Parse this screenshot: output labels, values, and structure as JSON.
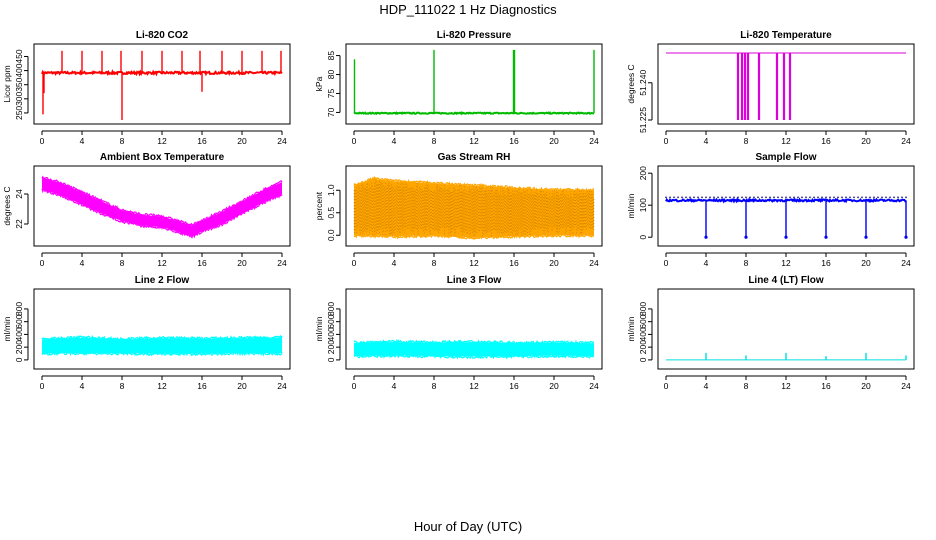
{
  "title": "HDP_111022  1 Hz Diagnostics",
  "x_axis_label": "Hour of Day (UTC)",
  "chart_data": [
    {
      "type": "line",
      "title": "Li-820 CO2",
      "ylabel": "Licor ppm",
      "color": "#ff0000",
      "x": [
        0,
        4,
        8,
        12,
        16,
        20,
        24
      ],
      "xlim": [
        0,
        24
      ],
      "yticks": [
        250,
        300,
        350,
        400,
        450
      ],
      "ylim": [
        225,
        480
      ],
      "baseline": 392,
      "band": 8,
      "spikes": [
        {
          "x": 0.1,
          "y": 245
        },
        {
          "x": 0.2,
          "y": 320
        },
        {
          "x": 2.0,
          "y": 470
        },
        {
          "x": 4.0,
          "y": 470
        },
        {
          "x": 6.0,
          "y": 470
        },
        {
          "x": 7.9,
          "y": 470
        },
        {
          "x": 8.0,
          "y": 225
        },
        {
          "x": 10.0,
          "y": 470
        },
        {
          "x": 12.0,
          "y": 470
        },
        {
          "x": 14.0,
          "y": 470
        },
        {
          "x": 15.8,
          "y": 470
        },
        {
          "x": 16.0,
          "y": 325
        },
        {
          "x": 18.0,
          "y": 470
        },
        {
          "x": 20.0,
          "y": 470
        },
        {
          "x": 22.0,
          "y": 470
        },
        {
          "x": 23.9,
          "y": 470
        }
      ]
    },
    {
      "type": "line",
      "title": "Li-820 Pressure",
      "ylabel": "kPa",
      "color": "#00bb00",
      "x": [
        0,
        4,
        8,
        12,
        16,
        20,
        24
      ],
      "xlim": [
        0,
        24
      ],
      "yticks": [
        70,
        75,
        80,
        85
      ],
      "ylim": [
        68,
        87
      ],
      "baseline": 69.8,
      "band": 0.3,
      "spikes": [
        {
          "x": 0.05,
          "y": 84
        },
        {
          "x": 8.0,
          "y": 86.5
        },
        {
          "x": 15.95,
          "y": 86.5
        },
        {
          "x": 16.05,
          "y": 86.5
        },
        {
          "x": 24.0,
          "y": 86.5
        }
      ]
    },
    {
      "type": "line",
      "title": "Li-820 Temperature",
      "ylabel": "degrees C",
      "color": "#dd00dd",
      "x": [
        0,
        4,
        8,
        12,
        16,
        20,
        24
      ],
      "xlim": [
        0,
        24
      ],
      "yticks": [
        51.225,
        51.24
      ],
      "ytick_labels": [
        "51.225",
        "51.240"
      ],
      "ylim": [
        51.225,
        51.254
      ],
      "baseline": 51.252,
      "band": 0,
      "drops": [
        7.2,
        7.6,
        7.9,
        8.2,
        9.3,
        11.1,
        11.8,
        12.4
      ]
    },
    {
      "type": "area",
      "title": "Ambient Box Temperature",
      "ylabel": "degrees C",
      "color": "#ff00ff",
      "x": [
        0,
        4,
        8,
        12,
        16,
        20,
        24
      ],
      "xlim": [
        0,
        24
      ],
      "yticks": [
        22,
        24
      ],
      "ylim": [
        20.8,
        25.6
      ],
      "series": [
        {
          "name": "upper",
          "points": [
            [
              0,
              25.1
            ],
            [
              2,
              24.7
            ],
            [
              4,
              24.1
            ],
            [
              6,
              23.5
            ],
            [
              8,
              22.9
            ],
            [
              10,
              22.6
            ],
            [
              12,
              22.5
            ],
            [
              14,
              22.1
            ],
            [
              15,
              21.9
            ],
            [
              16,
              22.2
            ],
            [
              18,
              22.8
            ],
            [
              20,
              23.5
            ],
            [
              22,
              24.2
            ],
            [
              24,
              24.8
            ]
          ]
        },
        {
          "name": "lower",
          "points": [
            [
              0,
              24.3
            ],
            [
              2,
              23.9
            ],
            [
              4,
              23.3
            ],
            [
              6,
              22.7
            ],
            [
              8,
              22.2
            ],
            [
              10,
              21.9
            ],
            [
              12,
              21.8
            ],
            [
              14,
              21.4
            ],
            [
              15,
              21.2
            ],
            [
              16,
              21.5
            ],
            [
              18,
              22.0
            ],
            [
              20,
              22.7
            ],
            [
              22,
              23.4
            ],
            [
              24,
              24.0
            ]
          ]
        }
      ]
    },
    {
      "type": "area",
      "title": "Gas Stream RH",
      "ylabel": "percent",
      "color": "#ffa500",
      "x": [
        0,
        4,
        8,
        12,
        16,
        20,
        24
      ],
      "xlim": [
        0,
        24
      ],
      "yticks": [
        0.0,
        0.5,
        1.0
      ],
      "ytick_labels": [
        "0.0",
        "0.5",
        "1.0"
      ],
      "ylim": [
        -0.15,
        1.45
      ],
      "series": [
        {
          "name": "upper",
          "points": [
            [
              0,
              1.1
            ],
            [
              2,
              1.25
            ],
            [
              4,
              1.2
            ],
            [
              8,
              1.15
            ],
            [
              12,
              1.1
            ],
            [
              16,
              1.05
            ],
            [
              20,
              1.0
            ],
            [
              24,
              1.0
            ]
          ]
        },
        {
          "name": "lower",
          "points": [
            [
              0,
              0.0
            ],
            [
              4,
              -0.02
            ],
            [
              8,
              0.0
            ],
            [
              12,
              -0.05
            ],
            [
              16,
              -0.02
            ],
            [
              20,
              0.0
            ],
            [
              24,
              0.0
            ]
          ]
        }
      ]
    },
    {
      "type": "line",
      "title": "Sample Flow",
      "ylabel": "ml/min",
      "color": "#0000ff",
      "x": [
        0,
        4,
        8,
        12,
        16,
        20,
        24
      ],
      "xlim": [
        0,
        24
      ],
      "yticks": [
        0,
        100,
        200
      ],
      "ylim": [
        -15,
        210
      ],
      "baseline": 115,
      "band": 6,
      "drops": [
        4.0,
        8.0,
        12.0,
        16.0,
        20.0,
        24.0
      ],
      "drop_to": 0
    },
    {
      "type": "area",
      "title": "Line 2 Flow",
      "ylabel": "ml/min",
      "color": "#00ffff",
      "x": [
        0,
        4,
        8,
        12,
        16,
        20,
        24
      ],
      "xlim": [
        0,
        24
      ],
      "yticks": [
        0,
        200,
        400,
        600,
        800
      ],
      "ylim": [
        -80,
        1050
      ],
      "series": [
        {
          "name": "upper",
          "points": [
            [
              0,
              320
            ],
            [
              4,
              350
            ],
            [
              8,
              320
            ],
            [
              12,
              340
            ],
            [
              16,
              330
            ],
            [
              20,
              340
            ],
            [
              24,
              350
            ]
          ]
        },
        {
          "name": "lower",
          "points": [
            [
              0,
              100
            ],
            [
              4,
              110
            ],
            [
              8,
              105
            ],
            [
              12,
              100
            ],
            [
              16,
              100
            ],
            [
              20,
              110
            ],
            [
              24,
              105
            ]
          ]
        }
      ]
    },
    {
      "type": "area",
      "title": "Line 3 Flow",
      "ylabel": "ml/min",
      "color": "#00ffff",
      "x": [
        0,
        4,
        8,
        12,
        16,
        20,
        24
      ],
      "xlim": [
        0,
        24
      ],
      "yticks": [
        0,
        200,
        400,
        600,
        800
      ],
      "ylim": [
        -80,
        1050
      ],
      "series": [
        {
          "name": "upper",
          "points": [
            [
              0,
              270
            ],
            [
              4,
              280
            ],
            [
              8,
              270
            ],
            [
              12,
              280
            ],
            [
              16,
              265
            ],
            [
              20,
              270
            ],
            [
              24,
              260
            ]
          ]
        },
        {
          "name": "lower",
          "points": [
            [
              0,
              60
            ],
            [
              4,
              70
            ],
            [
              8,
              60
            ],
            [
              12,
              55
            ],
            [
              16,
              60
            ],
            [
              20,
              65
            ],
            [
              24,
              60
            ]
          ]
        }
      ]
    },
    {
      "type": "line",
      "title": "Line 4 (LT) Flow",
      "ylabel": "ml/min",
      "color": "#00dddd",
      "x": [
        0,
        4,
        8,
        12,
        16,
        20,
        24
      ],
      "xlim": [
        0,
        24
      ],
      "yticks": [
        0,
        200,
        400,
        600,
        800
      ],
      "ylim": [
        -80,
        1050
      ],
      "baseline": 0,
      "band": 0,
      "spikes": [
        {
          "x": 4.0,
          "y": 110
        },
        {
          "x": 8.0,
          "y": 70
        },
        {
          "x": 12.0,
          "y": 110
        },
        {
          "x": 16.0,
          "y": 60
        },
        {
          "x": 20.0,
          "y": 110
        },
        {
          "x": 24.0,
          "y": 70
        }
      ]
    }
  ]
}
